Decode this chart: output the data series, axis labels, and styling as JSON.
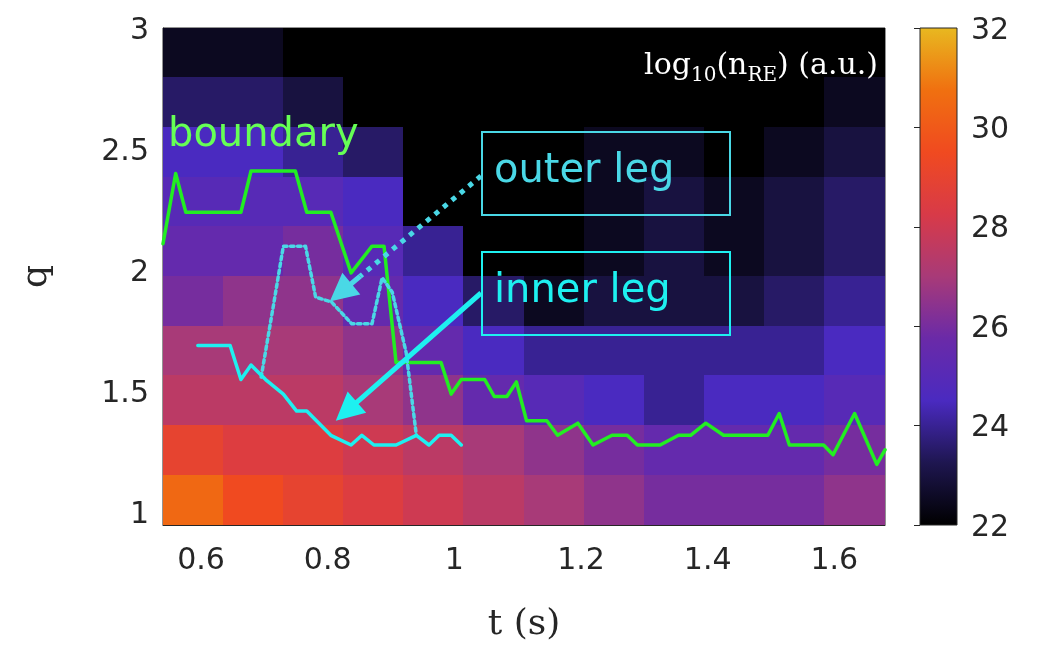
{
  "chart_data": {
    "type": "heatmap",
    "xlabel": "t (s)",
    "ylabel": "q",
    "clabel": "log$_{10}$(n$_{RE}$) (a.u.)",
    "xlim": [
      0.54,
      1.68
    ],
    "xticks": [
      0.6,
      0.8,
      1,
      1.2,
      1.4,
      1.6
    ],
    "ylim": [
      0.95,
      3
    ],
    "yticks": [
      1,
      1.5,
      2,
      2.5,
      3
    ],
    "clim": [
      22,
      32
    ],
    "cticks": [
      22,
      24,
      26,
      28,
      30,
      32
    ],
    "x": [
      0.5875,
      0.6825,
      0.7775,
      0.8725,
      0.9675,
      1.0625,
      1.1575,
      1.2525,
      1.3475,
      1.4425,
      1.5375,
      1.6325
    ],
    "y": [
      2.8975,
      2.6925,
      2.4875,
      2.2825,
      2.0775,
      1.8725,
      1.6675,
      1.4625,
      1.2575,
      1.0525
    ],
    "cells": [
      [
        22.5,
        22.5,
        22,
        22,
        22,
        22,
        22,
        22,
        22,
        22,
        22,
        22
      ],
      [
        23.5,
        23.5,
        23,
        22,
        22,
        22,
        22,
        22,
        22,
        22,
        22,
        22.5
      ],
      [
        24.5,
        24.5,
        24,
        23.5,
        22,
        22,
        22,
        22.5,
        22.5,
        22,
        22.5,
        23
      ],
      [
        25,
        25,
        25,
        24.5,
        22,
        22,
        22,
        22.5,
        23,
        22.5,
        23,
        23.5
      ],
      [
        25.5,
        25.5,
        26,
        25,
        24,
        22,
        22,
        22.5,
        23,
        22.5,
        23,
        23.5
      ],
      [
        26,
        26.5,
        26.5,
        25.5,
        24.5,
        23.5,
        22.5,
        23,
        23,
        23,
        23.5,
        24
      ],
      [
        27,
        27,
        27,
        26.5,
        25.5,
        24.5,
        24,
        24,
        24,
        24,
        24,
        24.5
      ],
      [
        27.5,
        27.5,
        27.5,
        27,
        26.5,
        25.5,
        25,
        24.5,
        24,
        24.5,
        24.5,
        25
      ],
      [
        29,
        28.5,
        28.5,
        28,
        27.5,
        27,
        26.5,
        26,
        25.5,
        25.5,
        25.5,
        26
      ],
      [
        30.5,
        29.5,
        29,
        28.5,
        28,
        27.5,
        27,
        26.5,
        26,
        26,
        26,
        26.5
      ]
    ],
    "marker": "none",
    "series": [
      {
        "name": "boundary",
        "type": "line",
        "color": "#22ee22",
        "line_style": "solid",
        "x": [
          0.54,
          0.56,
          0.576,
          0.663,
          0.679,
          0.749,
          0.767,
          0.805,
          0.837,
          0.87,
          0.889,
          0.908,
          0.979,
          0.995,
          1.011,
          1.048,
          1.063,
          1.083,
          1.098,
          1.114,
          1.146,
          1.163,
          1.195,
          1.219,
          1.249,
          1.273,
          1.289,
          1.325,
          1.354,
          1.373,
          1.397,
          1.425,
          1.495,
          1.513,
          1.529,
          1.583,
          1.598,
          1.632,
          1.667,
          1.68
        ],
        "values": [
          2.11,
          2.4,
          2.24,
          2.24,
          2.41,
          2.41,
          2.24,
          2.24,
          1.99,
          2.1,
          2.1,
          1.62,
          1.62,
          1.49,
          1.55,
          1.55,
          1.48,
          1.48,
          1.54,
          1.38,
          1.38,
          1.32,
          1.37,
          1.28,
          1.32,
          1.32,
          1.28,
          1.28,
          1.32,
          1.32,
          1.37,
          1.32,
          1.32,
          1.41,
          1.28,
          1.28,
          1.24,
          1.41,
          1.2,
          1.26
        ]
      },
      {
        "name": "outer leg",
        "type": "line",
        "color": "#4ad8e6",
        "line_style": "dotted",
        "x": [
          0.695,
          0.714,
          0.73,
          0.765,
          0.781,
          0.806,
          0.838,
          0.87,
          0.886,
          0.902,
          0.924,
          0.94
        ],
        "values": [
          1.56,
          1.85,
          2.1,
          2.1,
          1.89,
          1.87,
          1.78,
          1.78,
          1.97,
          1.91,
          1.66,
          1.32
        ]
      },
      {
        "name": "inner leg",
        "type": "line",
        "color": "#1ef0f0",
        "line_style": "solid",
        "x": [
          0.595,
          0.646,
          0.663,
          0.679,
          0.702,
          0.73,
          0.751,
          0.767,
          0.805,
          0.837,
          0.854,
          0.873,
          0.908,
          0.94,
          0.96,
          0.976,
          0.995,
          1.011
        ],
        "values": [
          1.69,
          1.69,
          1.55,
          1.61,
          1.55,
          1.49,
          1.42,
          1.42,
          1.32,
          1.28,
          1.32,
          1.28,
          1.28,
          1.32,
          1.28,
          1.32,
          1.32,
          1.28
        ]
      }
    ]
  }
}
